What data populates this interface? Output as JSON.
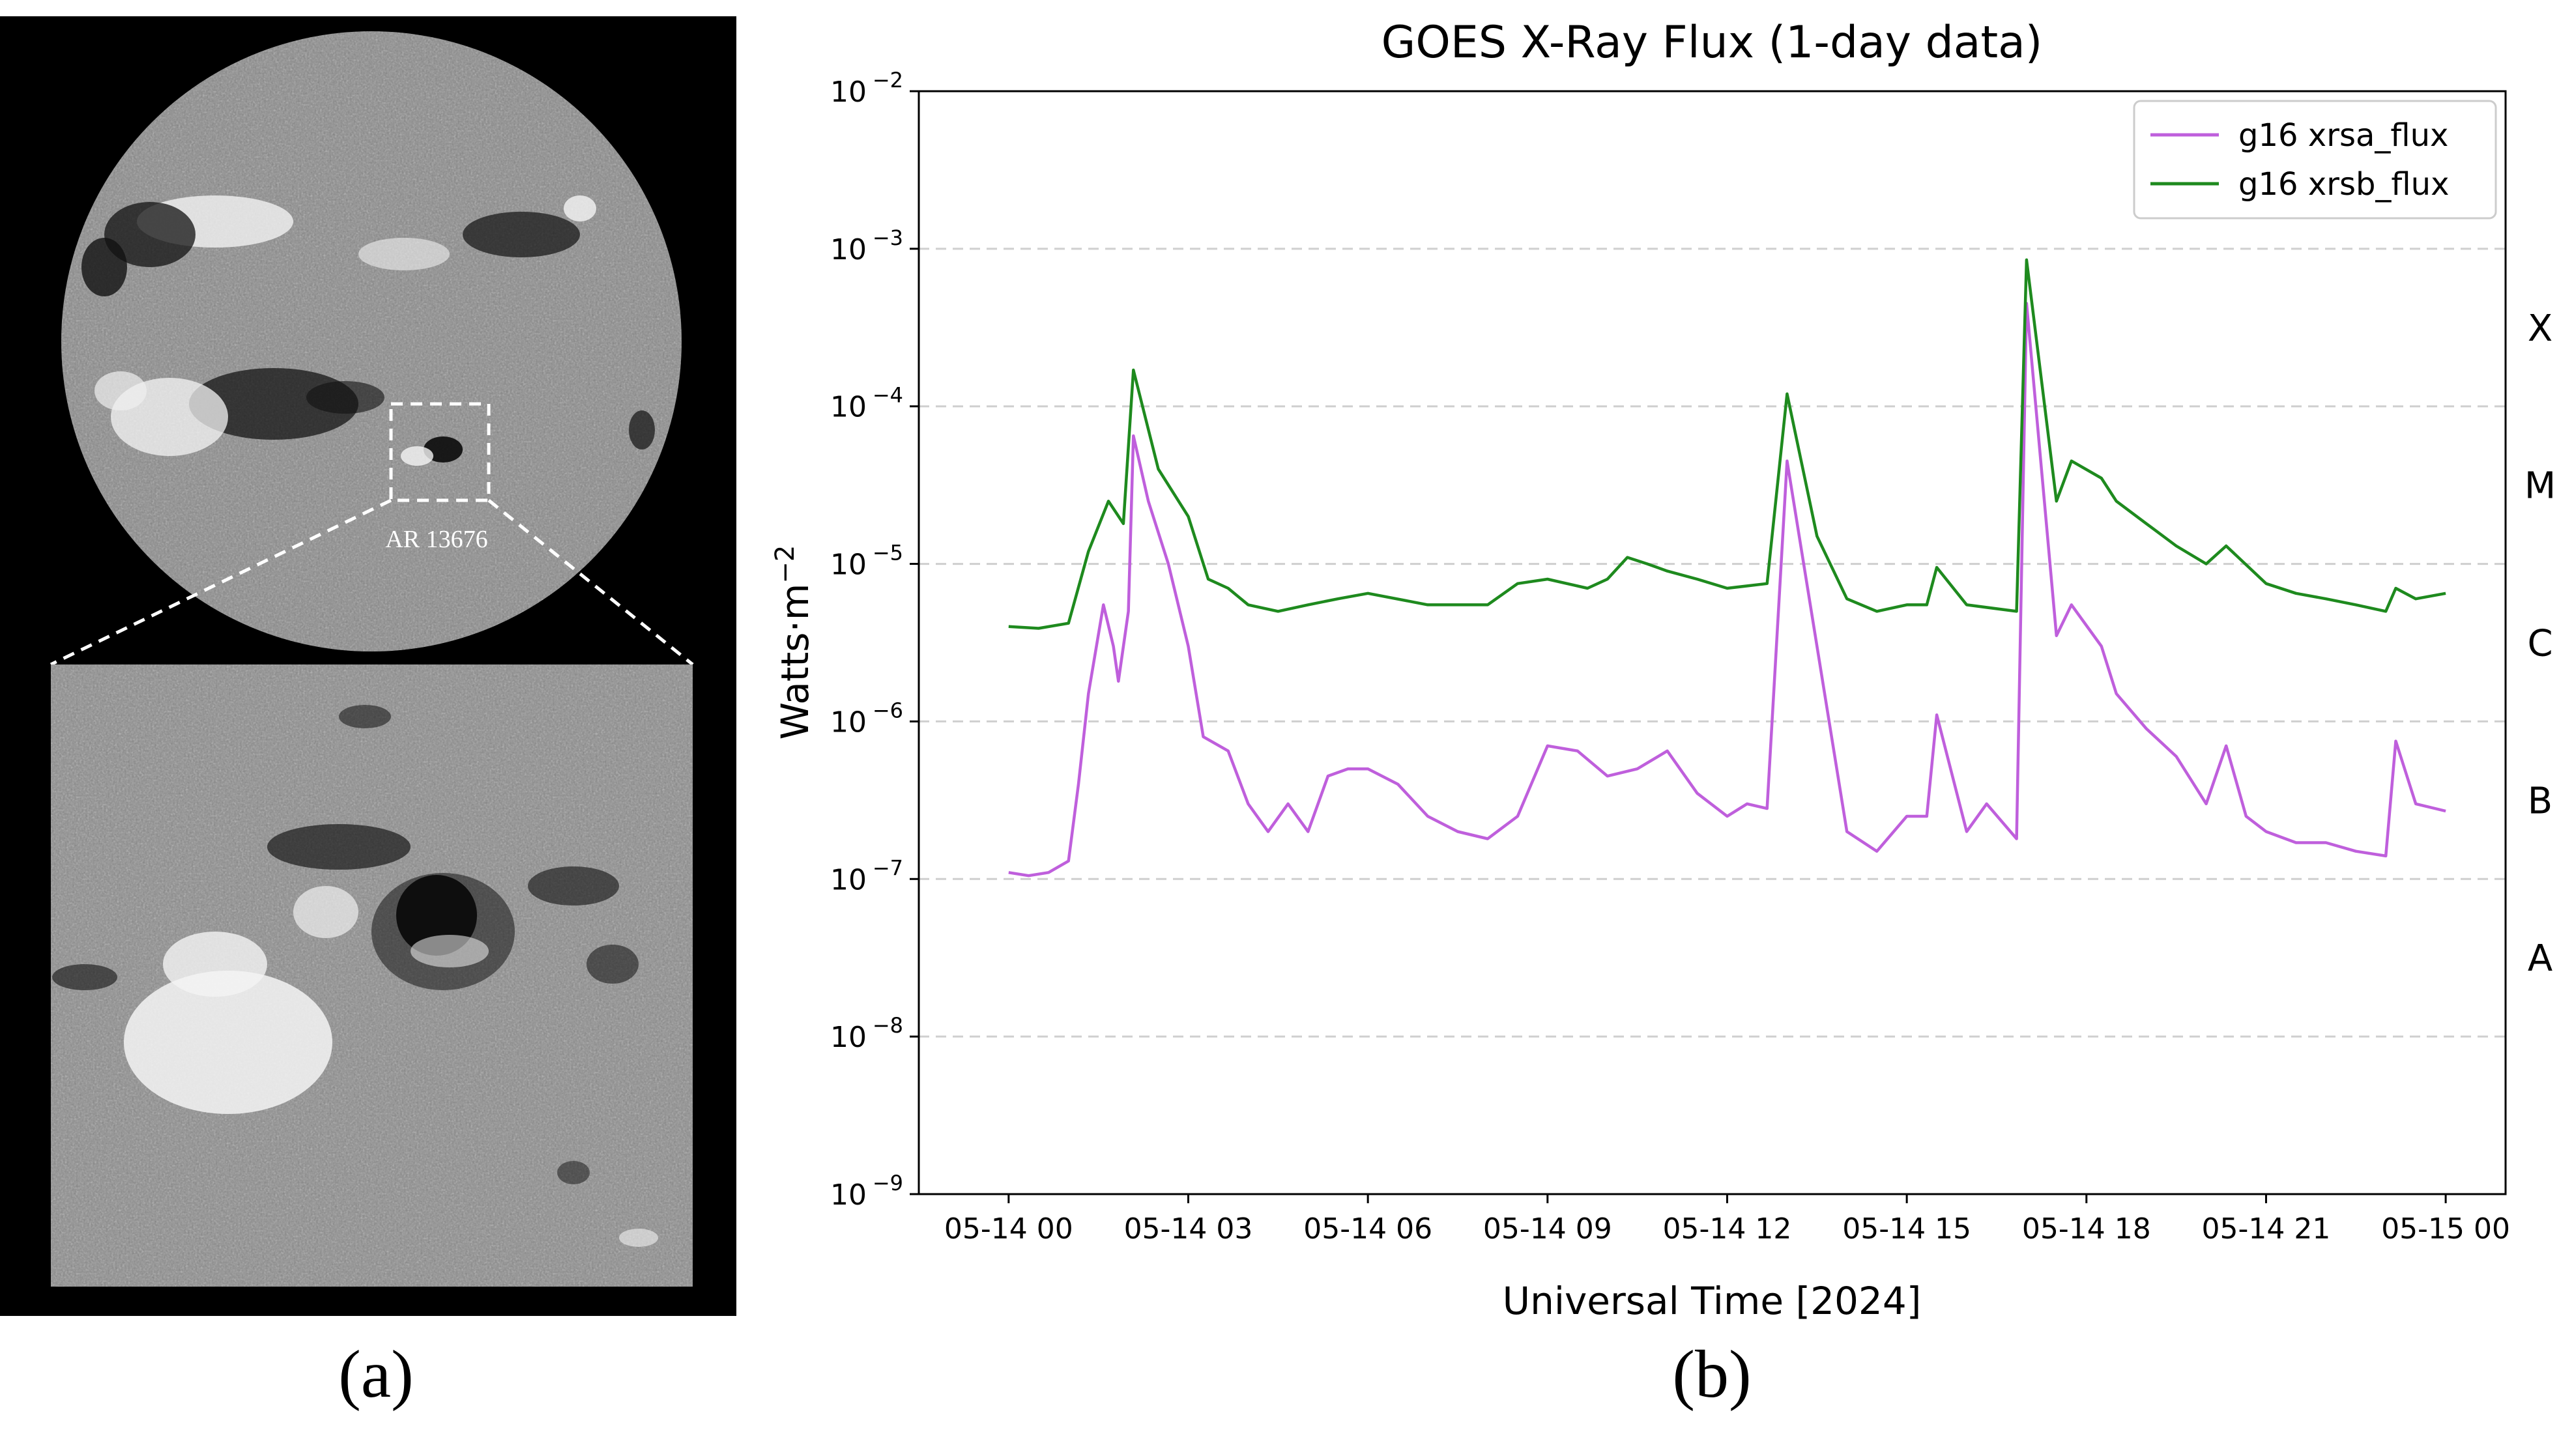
{
  "panel_a": {
    "label": "(a)",
    "region_label": "AR 13676"
  },
  "panel_b_label": "(b)",
  "chart_data": {
    "type": "line",
    "title": "GOES X-Ray Flux (1-day data)",
    "xlabel": "Universal Time [2024]",
    "ylabel": "Watts·m⁻²",
    "y_scale": "log",
    "ylim": [
      1e-09,
      0.01
    ],
    "xlim": [
      "2024-05-13T22:30",
      "2024-05-15T01:00"
    ],
    "x_ticks": [
      {
        "t": "2024-05-14T00:00",
        "label": "05-14 00"
      },
      {
        "t": "2024-05-14T03:00",
        "label": "05-14 03"
      },
      {
        "t": "2024-05-14T06:00",
        "label": "05-14 06"
      },
      {
        "t": "2024-05-14T09:00",
        "label": "05-14 09"
      },
      {
        "t": "2024-05-14T12:00",
        "label": "05-14 12"
      },
      {
        "t": "2024-05-14T15:00",
        "label": "05-14 15"
      },
      {
        "t": "2024-05-14T18:00",
        "label": "05-14 18"
      },
      {
        "t": "2024-05-14T21:00",
        "label": "05-14 21"
      },
      {
        "t": "2024-05-15T00:00",
        "label": "05-15 00"
      }
    ],
    "y_ticks": [
      {
        "exp": -9,
        "label": "10",
        "sup": "−9"
      },
      {
        "exp": -8,
        "label": "10",
        "sup": "−8"
      },
      {
        "exp": -7,
        "label": "10",
        "sup": "−7"
      },
      {
        "exp": -6,
        "label": "10",
        "sup": "−6"
      },
      {
        "exp": -5,
        "label": "10",
        "sup": "−5"
      },
      {
        "exp": -4,
        "label": "10",
        "sup": "−4"
      },
      {
        "exp": -3,
        "label": "10",
        "sup": "−3"
      },
      {
        "exp": -2,
        "label": "10",
        "sup": "−2"
      }
    ],
    "flare_classes": [
      {
        "label": "A",
        "center_exp": -7.5
      },
      {
        "label": "B",
        "center_exp": -6.5
      },
      {
        "label": "C",
        "center_exp": -5.5
      },
      {
        "label": "M",
        "center_exp": -4.5
      },
      {
        "label": "X",
        "center_exp": -3.5
      }
    ],
    "gridlines_exp": [
      -8,
      -7,
      -6,
      -5,
      -4,
      -3
    ],
    "grid": "horizontal dashed",
    "legend": "top-right",
    "series": [
      {
        "name": "g16 xrsa_flux",
        "color": "#bf5fdc",
        "points": [
          [
            "2024-05-14T00:00",
            1.1e-07
          ],
          [
            "2024-05-14T00:20",
            1.05e-07
          ],
          [
            "2024-05-14T00:40",
            1.1e-07
          ],
          [
            "2024-05-14T01:00",
            1.3e-07
          ],
          [
            "2024-05-14T01:10",
            4e-07
          ],
          [
            "2024-05-14T01:20",
            1.5e-06
          ],
          [
            "2024-05-14T01:35",
            5.5e-06
          ],
          [
            "2024-05-14T01:45",
            3e-06
          ],
          [
            "2024-05-14T01:50",
            1.8e-06
          ],
          [
            "2024-05-14T02:00",
            5e-06
          ],
          [
            "2024-05-14T02:05",
            6.5e-05
          ],
          [
            "2024-05-14T02:20",
            2.5e-05
          ],
          [
            "2024-05-14T02:40",
            1e-05
          ],
          [
            "2024-05-14T03:00",
            3e-06
          ],
          [
            "2024-05-14T03:15",
            8e-07
          ],
          [
            "2024-05-14T03:40",
            6.5e-07
          ],
          [
            "2024-05-14T04:00",
            3e-07
          ],
          [
            "2024-05-14T04:20",
            2e-07
          ],
          [
            "2024-05-14T04:40",
            3e-07
          ],
          [
            "2024-05-14T05:00",
            2e-07
          ],
          [
            "2024-05-14T05:20",
            4.5e-07
          ],
          [
            "2024-05-14T05:40",
            5e-07
          ],
          [
            "2024-05-14T06:00",
            5e-07
          ],
          [
            "2024-05-14T06:30",
            4e-07
          ],
          [
            "2024-05-14T07:00",
            2.5e-07
          ],
          [
            "2024-05-14T07:30",
            2e-07
          ],
          [
            "2024-05-14T08:00",
            1.8e-07
          ],
          [
            "2024-05-14T08:30",
            2.5e-07
          ],
          [
            "2024-05-14T09:00",
            7e-07
          ],
          [
            "2024-05-14T09:30",
            6.5e-07
          ],
          [
            "2024-05-14T10:00",
            4.5e-07
          ],
          [
            "2024-05-14T10:30",
            5e-07
          ],
          [
            "2024-05-14T11:00",
            6.5e-07
          ],
          [
            "2024-05-14T11:30",
            3.5e-07
          ],
          [
            "2024-05-14T12:00",
            2.5e-07
          ],
          [
            "2024-05-14T12:20",
            3e-07
          ],
          [
            "2024-05-14T12:40",
            2.8e-07
          ],
          [
            "2024-05-14T13:00",
            4.5e-05
          ],
          [
            "2024-05-14T13:30",
            3e-06
          ],
          [
            "2024-05-14T14:00",
            2e-07
          ],
          [
            "2024-05-14T14:30",
            1.5e-07
          ],
          [
            "2024-05-14T15:00",
            2.5e-07
          ],
          [
            "2024-05-14T15:20",
            2.5e-07
          ],
          [
            "2024-05-14T15:30",
            1.1e-06
          ],
          [
            "2024-05-14T16:00",
            2e-07
          ],
          [
            "2024-05-14T16:20",
            3e-07
          ],
          [
            "2024-05-14T16:50",
            1.8e-07
          ],
          [
            "2024-05-14T17:00",
            0.00045
          ],
          [
            "2024-05-14T17:30",
            3.5e-06
          ],
          [
            "2024-05-14T17:45",
            5.5e-06
          ],
          [
            "2024-05-14T18:15",
            3e-06
          ],
          [
            "2024-05-14T18:30",
            1.5e-06
          ],
          [
            "2024-05-14T19:00",
            9e-07
          ],
          [
            "2024-05-14T19:30",
            6e-07
          ],
          [
            "2024-05-14T20:00",
            3e-07
          ],
          [
            "2024-05-14T20:20",
            7e-07
          ],
          [
            "2024-05-14T20:40",
            2.5e-07
          ],
          [
            "2024-05-14T21:00",
            2e-07
          ],
          [
            "2024-05-14T21:30",
            1.7e-07
          ],
          [
            "2024-05-14T22:00",
            1.7e-07
          ],
          [
            "2024-05-14T22:30",
            1.5e-07
          ],
          [
            "2024-05-14T23:00",
            1.4e-07
          ],
          [
            "2024-05-14T23:10",
            7.5e-07
          ],
          [
            "2024-05-14T23:30",
            3e-07
          ],
          [
            "2024-05-15T00:00",
            2.7e-07
          ]
        ]
      },
      {
        "name": "g16 xrsb_flux",
        "color": "#1e8a1e",
        "points": [
          [
            "2024-05-14T00:00",
            4e-06
          ],
          [
            "2024-05-14T00:30",
            3.9e-06
          ],
          [
            "2024-05-14T01:00",
            4.2e-06
          ],
          [
            "2024-05-14T01:20",
            1.2e-05
          ],
          [
            "2024-05-14T01:40",
            2.5e-05
          ],
          [
            "2024-05-14T01:55",
            1.8e-05
          ],
          [
            "2024-05-14T02:05",
            0.00017
          ],
          [
            "2024-05-14T02:30",
            4e-05
          ],
          [
            "2024-05-14T03:00",
            2e-05
          ],
          [
            "2024-05-14T03:20",
            8e-06
          ],
          [
            "2024-05-14T03:40",
            7e-06
          ],
          [
            "2024-05-14T04:00",
            5.5e-06
          ],
          [
            "2024-05-14T04:30",
            5e-06
          ],
          [
            "2024-05-14T05:00",
            5.5e-06
          ],
          [
            "2024-05-14T05:30",
            6e-06
          ],
          [
            "2024-05-14T06:00",
            6.5e-06
          ],
          [
            "2024-05-14T07:00",
            5.5e-06
          ],
          [
            "2024-05-14T08:00",
            5.5e-06
          ],
          [
            "2024-05-14T08:30",
            7.5e-06
          ],
          [
            "2024-05-14T09:00",
            8e-06
          ],
          [
            "2024-05-14T09:40",
            7e-06
          ],
          [
            "2024-05-14T10:00",
            8e-06
          ],
          [
            "2024-05-14T10:20",
            1.1e-05
          ],
          [
            "2024-05-14T10:40",
            1e-05
          ],
          [
            "2024-05-14T11:00",
            9e-06
          ],
          [
            "2024-05-14T11:30",
            8e-06
          ],
          [
            "2024-05-14T12:00",
            7e-06
          ],
          [
            "2024-05-14T12:40",
            7.5e-06
          ],
          [
            "2024-05-14T13:00",
            0.00012
          ],
          [
            "2024-05-14T13:30",
            1.5e-05
          ],
          [
            "2024-05-14T14:00",
            6e-06
          ],
          [
            "2024-05-14T14:30",
            5e-06
          ],
          [
            "2024-05-14T15:00",
            5.5e-06
          ],
          [
            "2024-05-14T15:20",
            5.5e-06
          ],
          [
            "2024-05-14T15:30",
            9.5e-06
          ],
          [
            "2024-05-14T16:00",
            5.5e-06
          ],
          [
            "2024-05-14T16:50",
            5e-06
          ],
          [
            "2024-05-14T17:00",
            0.00085
          ],
          [
            "2024-05-14T17:30",
            2.5e-05
          ],
          [
            "2024-05-14T17:45",
            4.5e-05
          ],
          [
            "2024-05-14T18:15",
            3.5e-05
          ],
          [
            "2024-05-14T18:30",
            2.5e-05
          ],
          [
            "2024-05-14T19:00",
            1.8e-05
          ],
          [
            "2024-05-14T19:30",
            1.3e-05
          ],
          [
            "2024-05-14T20:00",
            1e-05
          ],
          [
            "2024-05-14T20:20",
            1.3e-05
          ],
          [
            "2024-05-14T21:00",
            7.5e-06
          ],
          [
            "2024-05-14T21:30",
            6.5e-06
          ],
          [
            "2024-05-14T22:00",
            6e-06
          ],
          [
            "2024-05-14T22:30",
            5.5e-06
          ],
          [
            "2024-05-14T23:00",
            5e-06
          ],
          [
            "2024-05-14T23:10",
            7e-06
          ],
          [
            "2024-05-14T23:30",
            6e-06
          ],
          [
            "2024-05-15T00:00",
            6.5e-06
          ]
        ]
      }
    ]
  }
}
